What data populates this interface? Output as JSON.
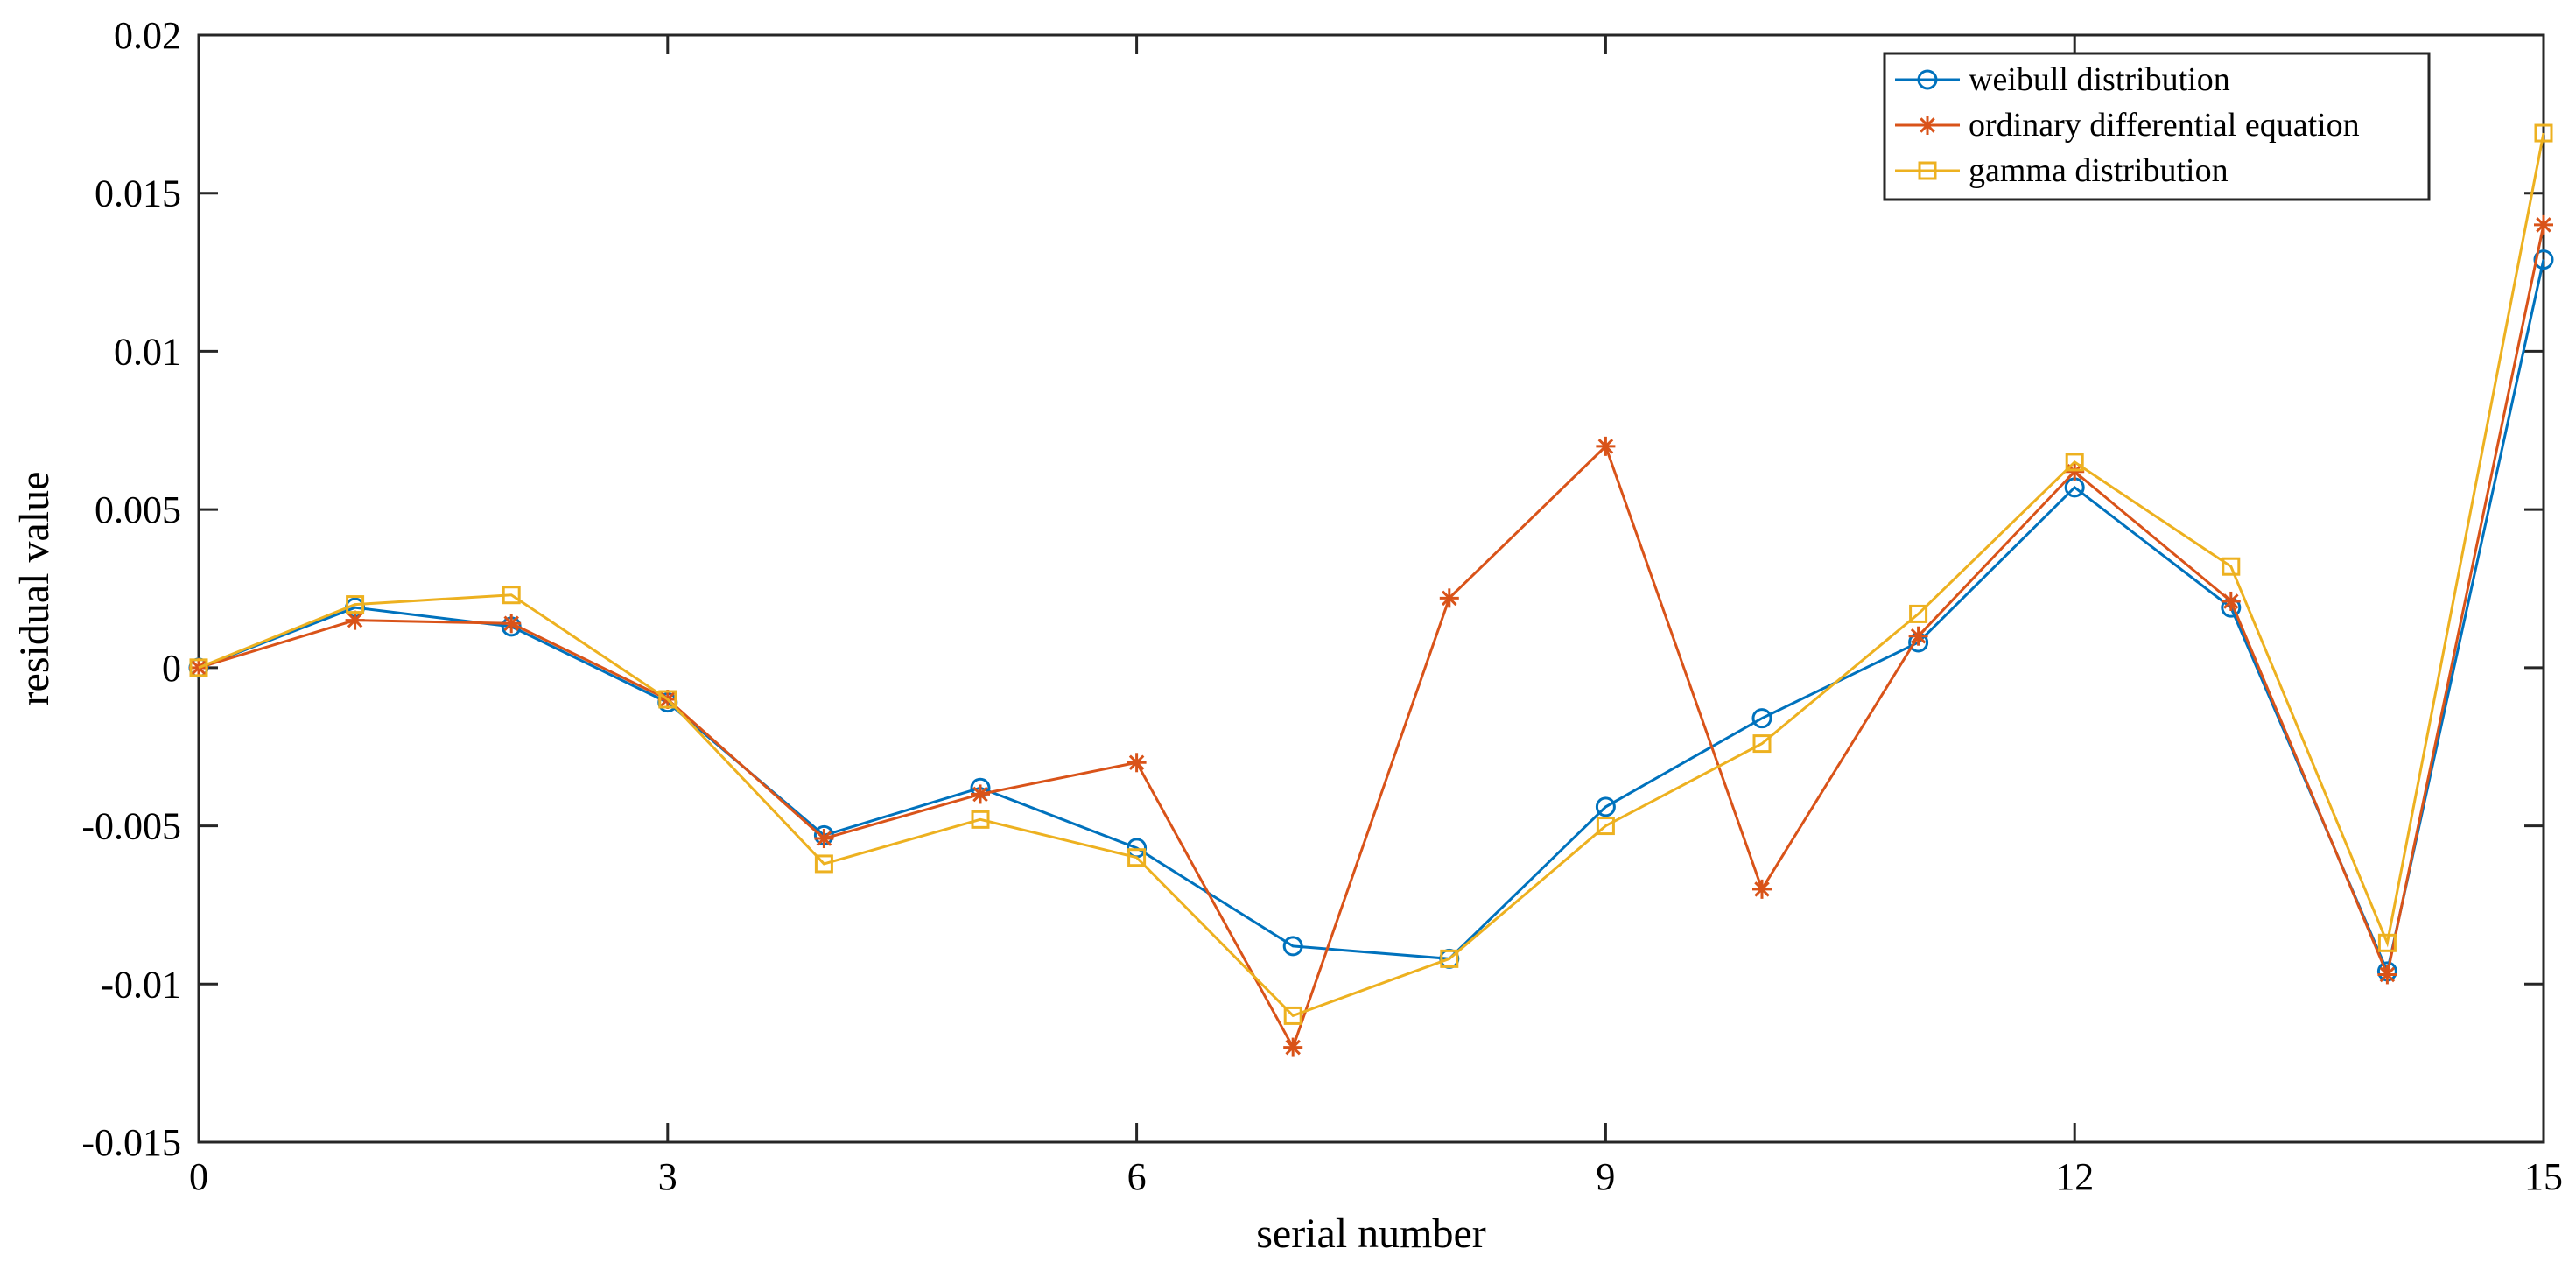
{
  "chart_data": {
    "type": "line",
    "title": "",
    "xlabel": "serial number",
    "ylabel": "residual value",
    "xlim": [
      0,
      15
    ],
    "ylim": [
      -0.015,
      0.02
    ],
    "xticks": [
      0,
      3,
      6,
      9,
      12,
      15
    ],
    "xtick_labels": [
      "0",
      "3",
      "6",
      "9",
      "12",
      "15"
    ],
    "yticks": [
      -0.015,
      -0.01,
      -0.005,
      0,
      0.005,
      0.01,
      0.015,
      0.02
    ],
    "ytick_labels": [
      "-0.015",
      "-0.01",
      "-0.005",
      "0",
      "0.005",
      "0.01",
      "0.015",
      "0.02"
    ],
    "grid": false,
    "legend_position": "top-right",
    "x": [
      0,
      1,
      2,
      3,
      4,
      5,
      6,
      7,
      8,
      9,
      10,
      11,
      12,
      13,
      14,
      15
    ],
    "series": [
      {
        "name": "weibull distribution",
        "color": "#0072BD",
        "marker": "circle",
        "values": [
          0,
          0.0019,
          0.0013,
          -0.0011,
          -0.0053,
          -0.0038,
          -0.0057,
          -0.0088,
          -0.0092,
          -0.0044,
          -0.0016,
          0.0008,
          0.0057,
          0.0019,
          -0.0096,
          0.0129
        ]
      },
      {
        "name": "ordinary differential equation",
        "color": "#D95319",
        "marker": "asterisk",
        "values": [
          0,
          0.0015,
          0.0014,
          -0.001,
          -0.0054,
          -0.004,
          -0.003,
          -0.012,
          0.0022,
          0.007,
          -0.007,
          0.001,
          0.0062,
          0.0021,
          -0.0097,
          0.014
        ]
      },
      {
        "name": "gamma distribution",
        "color": "#EDB120",
        "marker": "square",
        "values": [
          0,
          0.002,
          0.0023,
          -0.001,
          -0.0062,
          -0.0048,
          -0.006,
          -0.011,
          -0.0092,
          -0.005,
          -0.0024,
          0.0017,
          0.0065,
          0.0032,
          -0.0087,
          0.0169
        ]
      }
    ]
  }
}
